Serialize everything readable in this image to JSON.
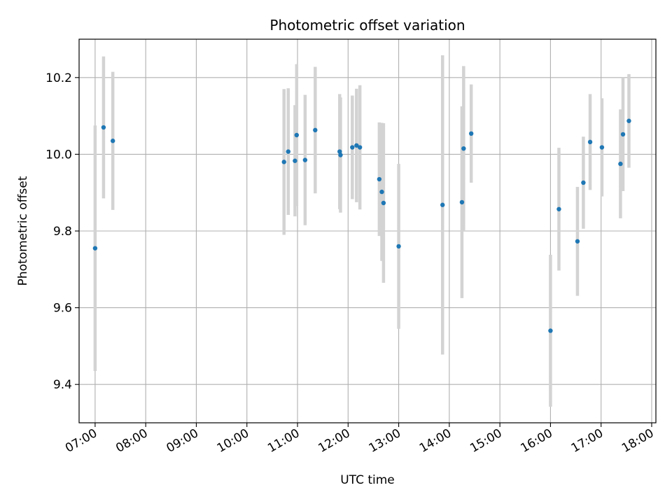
{
  "chart_data": {
    "type": "scatter",
    "title": "Photometric offset variation",
    "xlabel": "UTC time",
    "ylabel": "Photometric offset",
    "grid": true,
    "x_unit": "UTC time (HH:MM)",
    "xlim": [
      "06:41",
      "18:05"
    ],
    "ylim": [
      9.3,
      10.3
    ],
    "xticks": [
      "07:00",
      "08:00",
      "09:00",
      "10:00",
      "11:00",
      "12:00",
      "13:00",
      "14:00",
      "15:00",
      "16:00",
      "17:00",
      "18:00"
    ],
    "yticks": [
      9.4,
      9.6,
      9.8,
      10.0,
      10.2
    ],
    "ytick_labels": [
      "9.4",
      "9.6",
      "9.8",
      "10.0",
      "10.2"
    ],
    "colors": {
      "point": "#1f77b4",
      "errorbar": "#d3d3d3",
      "grid": "#b0b0b0"
    },
    "series": [
      {
        "points": [
          {
            "x": "07:00",
            "y": 9.755,
            "err": 0.32
          },
          {
            "x": "07:10",
            "y": 10.07,
            "err": 0.185
          },
          {
            "x": "07:21",
            "y": 10.035,
            "err": 0.18
          },
          {
            "x": "10:44",
            "y": 9.98,
            "err": 0.19
          },
          {
            "x": "10:49",
            "y": 10.007,
            "err": 0.165
          },
          {
            "x": "10:57",
            "y": 9.983,
            "err": 0.145
          },
          {
            "x": "10:59",
            "y": 10.05,
            "err": 0.185
          },
          {
            "x": "11:09",
            "y": 9.985,
            "err": 0.17
          },
          {
            "x": "11:21",
            "y": 10.063,
            "err": 0.165
          },
          {
            "x": "11:50",
            "y": 10.007,
            "err": 0.15
          },
          {
            "x": "11:51",
            "y": 9.998,
            "err": 0.15
          },
          {
            "x": "12:05",
            "y": 10.018,
            "err": 0.135
          },
          {
            "x": "12:10",
            "y": 10.023,
            "err": 0.148
          },
          {
            "x": "12:14",
            "y": 10.018,
            "err": 0.162
          },
          {
            "x": "12:37",
            "y": 9.935,
            "err": 0.148
          },
          {
            "x": "12:40",
            "y": 9.902,
            "err": 0.18
          },
          {
            "x": "12:42",
            "y": 9.873,
            "err": 0.208
          },
          {
            "x": "13:00",
            "y": 9.76,
            "err": 0.215
          },
          {
            "x": "13:52",
            "y": 9.868,
            "err": 0.39
          },
          {
            "x": "14:15",
            "y": 9.875,
            "err": 0.25
          },
          {
            "x": "14:17",
            "y": 10.015,
            "err": 0.215
          },
          {
            "x": "14:26",
            "y": 10.054,
            "err": 0.128
          },
          {
            "x": "16:00",
            "y": 9.54,
            "err": 0.198
          },
          {
            "x": "16:10",
            "y": 9.857,
            "err": 0.16
          },
          {
            "x": "16:32",
            "y": 9.773,
            "err": 0.142
          },
          {
            "x": "16:39",
            "y": 9.926,
            "err": 0.12
          },
          {
            "x": "16:47",
            "y": 10.032,
            "err": 0.125
          },
          {
            "x": "17:01",
            "y": 10.018,
            "err": 0.128
          },
          {
            "x": "17:23",
            "y": 9.975,
            "err": 0.142
          },
          {
            "x": "17:26",
            "y": 10.052,
            "err": 0.148
          },
          {
            "x": "17:33",
            "y": 10.087,
            "err": 0.122
          }
        ]
      }
    ]
  }
}
